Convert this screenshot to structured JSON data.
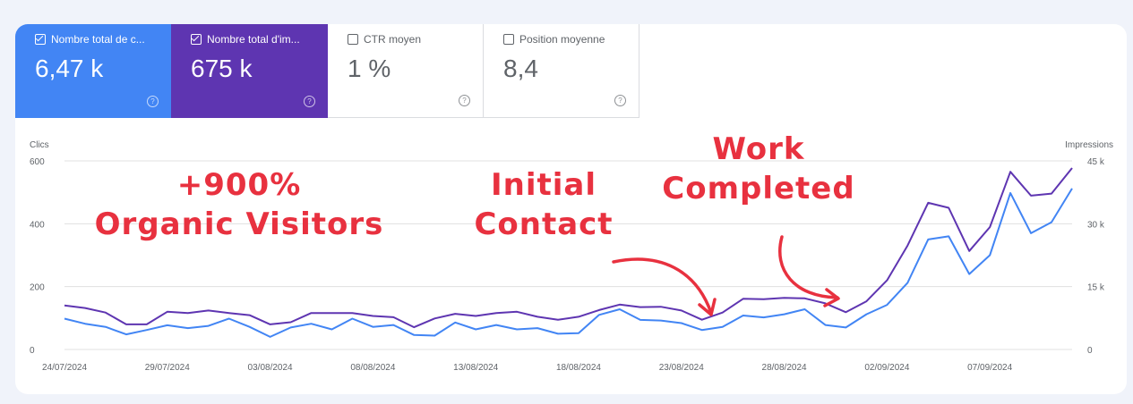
{
  "metrics": [
    {
      "label": "Nombre total de c...",
      "value": "6,47 k",
      "checked": true
    },
    {
      "label": "Nombre total d'im...",
      "value": "675 k",
      "checked": true
    },
    {
      "label": "CTR moyen",
      "value": "1 %",
      "checked": false
    },
    {
      "label": "Position moyenne",
      "value": "8,4",
      "checked": false
    }
  ],
  "help_glyph": "?",
  "annotations": {
    "growth_line1": "+900%",
    "growth_line2": "Organic Visitors",
    "contact_line1": "Initial",
    "contact_line2": "Contact",
    "work_line1": "Work",
    "work_line2": "Completed"
  },
  "colors": {
    "clicks": "#4285f4",
    "impressions": "#5e35b1",
    "annotation": "#e8313f"
  },
  "chart_data": {
    "type": "line",
    "ylabel": "Clics",
    "y2label": "Impressions",
    "ylim": [
      0,
      600
    ],
    "y2lim": [
      0,
      45000
    ],
    "y_ticks": [
      "0",
      "200",
      "400",
      "600"
    ],
    "y2_ticks": [
      "0",
      "15 k",
      "30 k",
      "45 k"
    ],
    "x_ticks": [
      "24/07/2024",
      "29/07/2024",
      "03/08/2024",
      "08/08/2024",
      "13/08/2024",
      "18/08/2024",
      "23/08/2024",
      "28/08/2024",
      "02/09/2024",
      "07/09/2024"
    ],
    "x_tick_every": 5,
    "grid": true,
    "series": [
      {
        "name": "Clics",
        "axis": "left",
        "color": "#4285f4",
        "values": [
          98,
          82,
          72,
          48,
          62,
          77,
          68,
          75,
          98,
          72,
          40,
          70,
          82,
          64,
          98,
          72,
          78,
          46,
          44,
          86,
          64,
          78,
          64,
          68,
          50,
          52,
          110,
          128,
          94,
          92,
          84,
          62,
          72,
          108,
          102,
          112,
          128,
          78,
          70,
          112,
          142,
          212,
          350,
          360,
          240,
          300,
          498,
          370,
          405,
          512
        ]
      },
      {
        "name": "Impressions",
        "axis": "right",
        "color": "#5e35b1",
        "values": [
          10500,
          9900,
          8800,
          6000,
          6000,
          9000,
          8700,
          9300,
          8700,
          8200,
          6000,
          6500,
          8700,
          8700,
          8700,
          8000,
          7700,
          5300,
          7400,
          8500,
          8000,
          8700,
          9000,
          7800,
          7100,
          7800,
          9400,
          10700,
          10100,
          10200,
          9300,
          7100,
          8800,
          12100,
          12000,
          12300,
          12200,
          11000,
          8900,
          11500,
          16500,
          24800,
          35000,
          33800,
          23500,
          29200,
          42400,
          36700,
          37200,
          43300
        ]
      }
    ]
  }
}
